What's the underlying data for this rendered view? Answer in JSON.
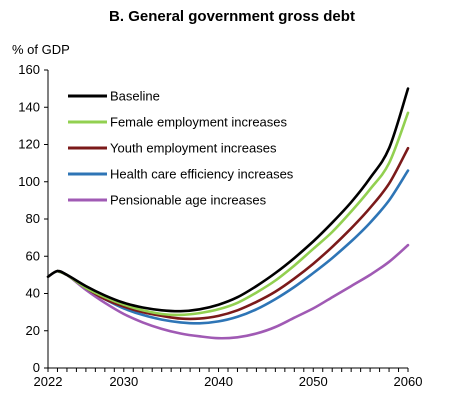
{
  "chart_data": {
    "type": "line",
    "title": "B. General government gross debt",
    "ylabel": "% of GDP",
    "xlabel": "",
    "xlim": [
      2022,
      2060
    ],
    "ylim": [
      0,
      160
    ],
    "x_ticks": [
      2022,
      2030,
      2040,
      2050,
      2060
    ],
    "y_ticks": [
      0,
      20,
      40,
      60,
      80,
      100,
      120,
      140,
      160
    ],
    "grid": false,
    "legend_position": "top-left",
    "series": [
      {
        "name": "Baseline",
        "color": "#000000",
        "points": [
          [
            2022,
            49
          ],
          [
            2023,
            52
          ],
          [
            2024,
            50
          ],
          [
            2026,
            44
          ],
          [
            2028,
            39
          ],
          [
            2030,
            35
          ],
          [
            2032,
            32.5
          ],
          [
            2034,
            31
          ],
          [
            2036,
            30.5
          ],
          [
            2038,
            31.5
          ],
          [
            2040,
            34
          ],
          [
            2042,
            38
          ],
          [
            2044,
            44
          ],
          [
            2046,
            51
          ],
          [
            2048,
            59
          ],
          [
            2050,
            68
          ],
          [
            2052,
            78
          ],
          [
            2054,
            89
          ],
          [
            2056,
            102
          ],
          [
            2058,
            118
          ],
          [
            2060,
            150
          ]
        ]
      },
      {
        "name": "Female employment increases",
        "color": "#92d050",
        "points": [
          [
            2023,
            52
          ],
          [
            2024,
            50
          ],
          [
            2026,
            43
          ],
          [
            2028,
            38
          ],
          [
            2030,
            34
          ],
          [
            2032,
            31
          ],
          [
            2034,
            29
          ],
          [
            2036,
            28.5
          ],
          [
            2038,
            29.5
          ],
          [
            2040,
            31.5
          ],
          [
            2042,
            35
          ],
          [
            2044,
            40.5
          ],
          [
            2046,
            47
          ],
          [
            2048,
            55
          ],
          [
            2050,
            64
          ],
          [
            2052,
            73
          ],
          [
            2054,
            84
          ],
          [
            2056,
            96
          ],
          [
            2058,
            110
          ],
          [
            2060,
            137
          ]
        ]
      },
      {
        "name": "Youth employment increases",
        "color": "#7b1a1a",
        "points": [
          [
            2023,
            52
          ],
          [
            2024,
            50
          ],
          [
            2026,
            43
          ],
          [
            2028,
            37
          ],
          [
            2030,
            33
          ],
          [
            2032,
            30
          ],
          [
            2034,
            28
          ],
          [
            2036,
            26.5
          ],
          [
            2038,
            26.5
          ],
          [
            2040,
            28
          ],
          [
            2042,
            31
          ],
          [
            2044,
            35.5
          ],
          [
            2046,
            41
          ],
          [
            2048,
            48
          ],
          [
            2050,
            56
          ],
          [
            2052,
            65
          ],
          [
            2054,
            75
          ],
          [
            2056,
            86
          ],
          [
            2058,
            99
          ],
          [
            2060,
            118
          ]
        ]
      },
      {
        "name": "Health care efficiency increases",
        "color": "#2e75b6",
        "points": [
          [
            2023,
            52
          ],
          [
            2024,
            50
          ],
          [
            2026,
            43
          ],
          [
            2028,
            37
          ],
          [
            2030,
            32
          ],
          [
            2032,
            28.5
          ],
          [
            2034,
            26
          ],
          [
            2036,
            24.5
          ],
          [
            2038,
            24
          ],
          [
            2040,
            25
          ],
          [
            2042,
            27.5
          ],
          [
            2044,
            31.5
          ],
          [
            2046,
            37
          ],
          [
            2048,
            43.5
          ],
          [
            2050,
            51
          ],
          [
            2052,
            59
          ],
          [
            2054,
            68
          ],
          [
            2056,
            78
          ],
          [
            2058,
            90
          ],
          [
            2060,
            106
          ]
        ]
      },
      {
        "name": "Pensionable age increases",
        "color": "#a05ab4",
        "points": [
          [
            2023,
            52
          ],
          [
            2024,
            50
          ],
          [
            2026,
            42
          ],
          [
            2028,
            35
          ],
          [
            2030,
            29
          ],
          [
            2032,
            24.5
          ],
          [
            2034,
            21
          ],
          [
            2036,
            18.5
          ],
          [
            2038,
            17
          ],
          [
            2040,
            16
          ],
          [
            2042,
            16.5
          ],
          [
            2044,
            18.5
          ],
          [
            2046,
            22
          ],
          [
            2048,
            27
          ],
          [
            2050,
            32
          ],
          [
            2052,
            38
          ],
          [
            2054,
            44
          ],
          [
            2056,
            50
          ],
          [
            2058,
            57
          ],
          [
            2060,
            66
          ]
        ]
      }
    ]
  }
}
